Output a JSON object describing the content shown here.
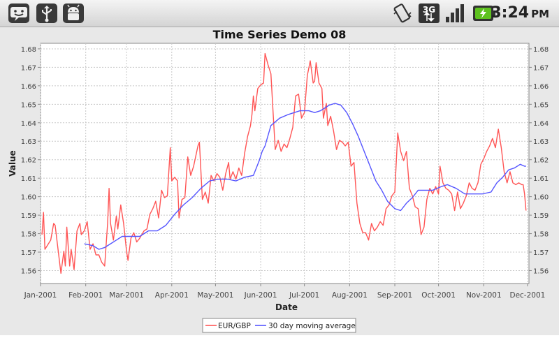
{
  "status_bar": {
    "time": "3:24",
    "ampm": "PM",
    "network_type": "3G",
    "left_icons": [
      "android-face-icon",
      "usb-icon",
      "android-debug-icon"
    ],
    "right_icons": [
      "vibrate-icon",
      "network-3g-icon",
      "signal-icon",
      "battery-charging-icon"
    ]
  },
  "chart_data": {
    "type": "line",
    "title": "Time Series Demo 08",
    "xlabel": "Date",
    "ylabel": "Value",
    "ylim": [
      1.553,
      1.683
    ],
    "xlim": [
      "2001-01-01",
      "2001-12-02"
    ],
    "x_ticks": [
      "Jan-2001",
      "Feb-2001",
      "Mar-2001",
      "Apr-2001",
      "May-2001",
      "Jun-2001",
      "Jul-2001",
      "Aug-2001",
      "Sep-2001",
      "Oct-2001",
      "Nov-2001",
      "Dec-2001"
    ],
    "y_ticks": [
      "1.56",
      "1.57",
      "1.58",
      "1.59",
      "1.60",
      "1.61",
      "1.62",
      "1.63",
      "1.64",
      "1.65",
      "1.66",
      "1.67",
      "1.68"
    ],
    "grid": true,
    "legend": "bottom",
    "colors": {
      "eur_gbp": "#ff5555",
      "moving_average": "#5555ff"
    },
    "series": [
      {
        "name": "EUR/GBP",
        "points": [
          [
            "2001-01-02",
            1.5795
          ],
          [
            "2001-01-03",
            1.5915
          ],
          [
            "2001-01-04",
            1.5715
          ],
          [
            "2001-01-08",
            1.5765
          ],
          [
            "2001-01-10",
            1.5855
          ],
          [
            "2001-01-11",
            1.5845
          ],
          [
            "2001-01-15",
            1.5585
          ],
          [
            "2001-01-17",
            1.5705
          ],
          [
            "2001-01-18",
            1.5625
          ],
          [
            "2001-01-19",
            1.5835
          ],
          [
            "2001-01-21",
            1.5625
          ],
          [
            "2001-01-22",
            1.5715
          ],
          [
            "2001-01-24",
            1.5605
          ],
          [
            "2001-01-26",
            1.5815
          ],
          [
            "2001-01-28",
            1.5855
          ],
          [
            "2001-01-29",
            1.5795
          ],
          [
            "2001-01-31",
            1.5815
          ],
          [
            "2001-02-02",
            1.5865
          ],
          [
            "2001-02-04",
            1.5715
          ],
          [
            "2001-02-06",
            1.5745
          ],
          [
            "2001-02-08",
            1.5685
          ],
          [
            "2001-02-10",
            1.5685
          ],
          [
            "2001-02-12",
            1.5645
          ],
          [
            "2001-02-14",
            1.5625
          ],
          [
            "2001-02-16",
            1.5855
          ],
          [
            "2001-02-17",
            1.6045
          ],
          [
            "2001-02-18",
            1.5855
          ],
          [
            "2001-02-20",
            1.5765
          ],
          [
            "2001-02-22",
            1.5895
          ],
          [
            "2001-02-23",
            1.5825
          ],
          [
            "2001-02-25",
            1.5955
          ],
          [
            "2001-02-27",
            1.5855
          ],
          [
            "2001-03-01",
            1.5705
          ],
          [
            "2001-03-02",
            1.5655
          ],
          [
            "2001-03-04",
            1.5775
          ],
          [
            "2001-03-06",
            1.5805
          ],
          [
            "2001-03-08",
            1.5755
          ],
          [
            "2001-03-10",
            1.5775
          ],
          [
            "2001-03-13",
            1.5815
          ],
          [
            "2001-03-15",
            1.5825
          ],
          [
            "2001-03-17",
            1.5905
          ],
          [
            "2001-03-19",
            1.5935
          ],
          [
            "2001-03-21",
            1.5975
          ],
          [
            "2001-03-23",
            1.5885
          ],
          [
            "2001-03-25",
            1.6035
          ],
          [
            "2001-03-27",
            1.5995
          ],
          [
            "2001-03-29",
            1.6005
          ],
          [
            "2001-03-31",
            1.6265
          ],
          [
            "2001-04-01",
            1.6085
          ],
          [
            "2001-04-03",
            1.6105
          ],
          [
            "2001-04-05",
            1.6085
          ],
          [
            "2001-04-06",
            1.5885
          ],
          [
            "2001-04-08",
            1.5985
          ],
          [
            "2001-04-10",
            1.5995
          ],
          [
            "2001-04-12",
            1.6215
          ],
          [
            "2001-04-14",
            1.6115
          ],
          [
            "2001-04-16",
            1.6165
          ],
          [
            "2001-04-19",
            1.6275
          ],
          [
            "2001-04-20",
            1.6295
          ],
          [
            "2001-04-22",
            1.5985
          ],
          [
            "2001-04-24",
            1.6025
          ],
          [
            "2001-04-26",
            1.5965
          ],
          [
            "2001-04-28",
            1.6115
          ],
          [
            "2001-04-30",
            1.6085
          ],
          [
            "2001-05-02",
            1.6125
          ],
          [
            "2001-05-04",
            1.6105
          ],
          [
            "2001-05-06",
            1.6035
          ],
          [
            "2001-05-08",
            1.6125
          ],
          [
            "2001-05-10",
            1.6185
          ],
          [
            "2001-05-11",
            1.6095
          ],
          [
            "2001-05-13",
            1.6135
          ],
          [
            "2001-05-15",
            1.6095
          ],
          [
            "2001-05-17",
            1.6155
          ],
          [
            "2001-05-19",
            1.6115
          ],
          [
            "2001-05-21",
            1.6235
          ],
          [
            "2001-05-23",
            1.6325
          ],
          [
            "2001-05-25",
            1.6385
          ],
          [
            "2001-05-26",
            1.6445
          ],
          [
            "2001-05-27",
            1.6545
          ],
          [
            "2001-05-28",
            1.6465
          ],
          [
            "2001-05-30",
            1.6585
          ],
          [
            "2001-06-01",
            1.6605
          ],
          [
            "2001-06-03",
            1.6615
          ],
          [
            "2001-06-04",
            1.6775
          ],
          [
            "2001-06-06",
            1.6715
          ],
          [
            "2001-06-08",
            1.6665
          ],
          [
            "2001-06-10",
            1.6385
          ],
          [
            "2001-06-11",
            1.6255
          ],
          [
            "2001-06-13",
            1.6305
          ],
          [
            "2001-06-15",
            1.6245
          ],
          [
            "2001-06-17",
            1.6285
          ],
          [
            "2001-06-19",
            1.6265
          ],
          [
            "2001-06-21",
            1.6315
          ],
          [
            "2001-06-23",
            1.6375
          ],
          [
            "2001-06-25",
            1.6545
          ],
          [
            "2001-06-27",
            1.6555
          ],
          [
            "2001-06-29",
            1.6425
          ],
          [
            "2001-07-01",
            1.6455
          ],
          [
            "2001-07-03",
            1.6655
          ],
          [
            "2001-07-05",
            1.6735
          ],
          [
            "2001-07-07",
            1.6615
          ],
          [
            "2001-07-08",
            1.6625
          ],
          [
            "2001-07-09",
            1.6725
          ],
          [
            "2001-07-11",
            1.6615
          ],
          [
            "2001-07-13",
            1.6585
          ],
          [
            "2001-07-14",
            1.6425
          ],
          [
            "2001-07-16",
            1.6505
          ],
          [
            "2001-07-17",
            1.6385
          ],
          [
            "2001-07-19",
            1.6435
          ],
          [
            "2001-07-21",
            1.6355
          ],
          [
            "2001-07-23",
            1.6255
          ],
          [
            "2001-07-25",
            1.6305
          ],
          [
            "2001-07-27",
            1.6295
          ],
          [
            "2001-07-29",
            1.6275
          ],
          [
            "2001-07-31",
            1.6295
          ],
          [
            "2001-08-02",
            1.6165
          ],
          [
            "2001-08-04",
            1.6185
          ],
          [
            "2001-08-06",
            1.5965
          ],
          [
            "2001-08-08",
            1.5855
          ],
          [
            "2001-08-10",
            1.5805
          ],
          [
            "2001-08-12",
            1.5805
          ],
          [
            "2001-08-14",
            1.5765
          ],
          [
            "2001-08-16",
            1.5855
          ],
          [
            "2001-08-18",
            1.5815
          ],
          [
            "2001-08-20",
            1.5835
          ],
          [
            "2001-08-22",
            1.5865
          ],
          [
            "2001-08-24",
            1.5845
          ],
          [
            "2001-08-26",
            1.5935
          ],
          [
            "2001-08-28",
            1.5955
          ],
          [
            "2001-08-30",
            1.6005
          ],
          [
            "2001-09-01",
            1.6025
          ],
          [
            "2001-09-03",
            1.6345
          ],
          [
            "2001-09-05",
            1.6245
          ],
          [
            "2001-09-07",
            1.6195
          ],
          [
            "2001-09-09",
            1.6245
          ],
          [
            "2001-09-11",
            1.6045
          ],
          [
            "2001-09-13",
            1.6005
          ],
          [
            "2001-09-15",
            1.5945
          ],
          [
            "2001-09-17",
            1.5935
          ],
          [
            "2001-09-19",
            1.5795
          ],
          [
            "2001-09-21",
            1.5835
          ],
          [
            "2001-09-23",
            1.5985
          ],
          [
            "2001-09-25",
            1.6045
          ],
          [
            "2001-09-27",
            1.6015
          ],
          [
            "2001-09-29",
            1.6055
          ],
          [
            "2001-10-01",
            1.6015
          ],
          [
            "2001-10-02",
            1.6165
          ],
          [
            "2001-10-04",
            1.6075
          ],
          [
            "2001-10-06",
            1.6045
          ],
          [
            "2001-10-08",
            1.6035
          ],
          [
            "2001-10-10",
            1.6015
          ],
          [
            "2001-10-12",
            1.5925
          ],
          [
            "2001-10-14",
            1.6025
          ],
          [
            "2001-10-16",
            1.5935
          ],
          [
            "2001-10-18",
            1.5965
          ],
          [
            "2001-10-20",
            1.6005
          ],
          [
            "2001-10-22",
            1.6075
          ],
          [
            "2001-10-24",
            1.6045
          ],
          [
            "2001-10-26",
            1.6035
          ],
          [
            "2001-10-28",
            1.6075
          ],
          [
            "2001-10-30",
            1.6175
          ],
          [
            "2001-11-01",
            1.6205
          ],
          [
            "2001-11-03",
            1.6245
          ],
          [
            "2001-11-05",
            1.6275
          ],
          [
            "2001-11-07",
            1.6315
          ],
          [
            "2001-11-09",
            1.6265
          ],
          [
            "2001-11-11",
            1.6365
          ],
          [
            "2001-11-13",
            1.6265
          ],
          [
            "2001-11-15",
            1.6135
          ],
          [
            "2001-11-17",
            1.6075
          ],
          [
            "2001-11-19",
            1.6135
          ],
          [
            "2001-11-21",
            1.6075
          ],
          [
            "2001-11-23",
            1.6065
          ],
          [
            "2001-11-25",
            1.6075
          ],
          [
            "2001-11-27",
            1.6065
          ],
          [
            "2001-11-28",
            1.6065
          ],
          [
            "2001-11-29",
            1.6015
          ],
          [
            "2001-11-30",
            1.5925
          ]
        ]
      },
      {
        "name": "30 day moving average",
        "points": [
          [
            "2001-01-31",
            1.5745
          ],
          [
            "2001-02-06",
            1.5735
          ],
          [
            "2001-02-10",
            1.5715
          ],
          [
            "2001-02-14",
            1.5725
          ],
          [
            "2001-02-18",
            1.5745
          ],
          [
            "2001-02-22",
            1.5765
          ],
          [
            "2001-02-26",
            1.5785
          ],
          [
            "2001-03-04",
            1.5785
          ],
          [
            "2001-03-10",
            1.5785
          ],
          [
            "2001-03-16",
            1.5815
          ],
          [
            "2001-03-22",
            1.5815
          ],
          [
            "2001-03-28",
            1.5845
          ],
          [
            "2001-04-03",
            1.5905
          ],
          [
            "2001-04-09",
            1.5955
          ],
          [
            "2001-04-15",
            1.5995
          ],
          [
            "2001-04-21",
            1.6045
          ],
          [
            "2001-04-27",
            1.6085
          ],
          [
            "2001-05-03",
            1.6095
          ],
          [
            "2001-05-09",
            1.6095
          ],
          [
            "2001-05-15",
            1.6085
          ],
          [
            "2001-05-21",
            1.6105
          ],
          [
            "2001-05-27",
            1.6115
          ],
          [
            "2001-05-31",
            1.6195
          ],
          [
            "2001-06-02",
            1.6245
          ],
          [
            "2001-06-04",
            1.6275
          ],
          [
            "2001-06-08",
            1.6385
          ],
          [
            "2001-06-14",
            1.6425
          ],
          [
            "2001-06-20",
            1.6445
          ],
          [
            "2001-06-24",
            1.6455
          ],
          [
            "2001-06-28",
            1.6465
          ],
          [
            "2001-07-04",
            1.6465
          ],
          [
            "2001-07-08",
            1.6455
          ],
          [
            "2001-07-12",
            1.6465
          ],
          [
            "2001-07-18",
            1.6495
          ],
          [
            "2001-07-22",
            1.6505
          ],
          [
            "2001-07-26",
            1.6495
          ],
          [
            "2001-07-30",
            1.6455
          ],
          [
            "2001-08-03",
            1.6395
          ],
          [
            "2001-08-07",
            1.6325
          ],
          [
            "2001-08-11",
            1.6245
          ],
          [
            "2001-08-15",
            1.6165
          ],
          [
            "2001-08-19",
            1.6085
          ],
          [
            "2001-08-23",
            1.6035
          ],
          [
            "2001-08-27",
            1.5975
          ],
          [
            "2001-09-01",
            1.5935
          ],
          [
            "2001-09-05",
            1.5925
          ],
          [
            "2001-09-09",
            1.5965
          ],
          [
            "2001-09-13",
            1.5995
          ],
          [
            "2001-09-17",
            1.6035
          ],
          [
            "2001-09-21",
            1.6035
          ],
          [
            "2001-09-27",
            1.6035
          ],
          [
            "2001-10-03",
            1.6055
          ],
          [
            "2001-10-07",
            1.6065
          ],
          [
            "2001-10-13",
            1.6045
          ],
          [
            "2001-10-19",
            1.6015
          ],
          [
            "2001-10-25",
            1.6015
          ],
          [
            "2001-10-31",
            1.6015
          ],
          [
            "2001-11-06",
            1.6025
          ],
          [
            "2001-11-10",
            1.6075
          ],
          [
            "2001-11-14",
            1.6105
          ],
          [
            "2001-11-18",
            1.6145
          ],
          [
            "2001-11-22",
            1.6155
          ],
          [
            "2001-11-26",
            1.6175
          ],
          [
            "2001-11-29",
            1.6165
          ],
          [
            "2001-11-30",
            1.6165
          ]
        ]
      }
    ]
  }
}
